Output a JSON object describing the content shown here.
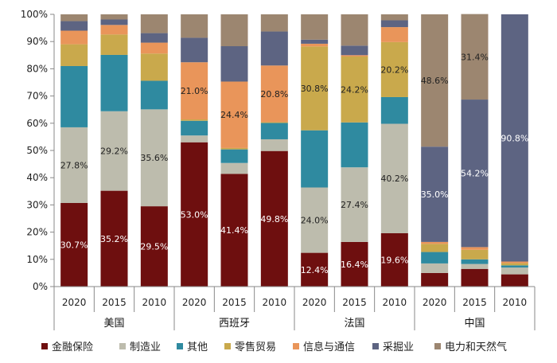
{
  "chart_data": {
    "type": "stacked-bar",
    "y_axis": {
      "min": 0,
      "max": 100,
      "step": 10,
      "unit": "%"
    },
    "groups": [
      {
        "name": "美国",
        "years": [
          "2020",
          "2015",
          "2010"
        ]
      },
      {
        "name": "西班牙",
        "years": [
          "2020",
          "2015",
          "2010"
        ]
      },
      {
        "name": "法国",
        "years": [
          "2020",
          "2015",
          "2010"
        ]
      },
      {
        "name": "中国",
        "years": [
          "2020",
          "2015",
          "2010"
        ]
      }
    ],
    "series": [
      {
        "name": "金融保险",
        "color": "#6e0f0f",
        "values": [
          30.7,
          35.2,
          29.5,
          53.0,
          41.4,
          49.8,
          12.4,
          16.4,
          19.6,
          5.0,
          6.5,
          4.5
        ]
      },
      {
        "name": "制造业",
        "color": "#bdbcad",
        "values": [
          27.8,
          29.2,
          35.6,
          2.5,
          4.0,
          4.3,
          24.0,
          27.4,
          40.2,
          3.5,
          1.8,
          2.5
        ]
      },
      {
        "name": "其他",
        "color": "#2f8aa0",
        "values": [
          22.5,
          20.7,
          10.5,
          5.4,
          5.0,
          6.0,
          21.0,
          16.5,
          9.8,
          4.2,
          1.7,
          0.8
        ]
      },
      {
        "name": "零售贸易",
        "color": "#c9a94c",
        "values": [
          8.0,
          7.5,
          10.0,
          0.5,
          0.5,
          0.3,
          30.8,
          24.2,
          20.2,
          3.0,
          3.5,
          0.8
        ]
      },
      {
        "name": "信息与通信",
        "color": "#e9955a",
        "values": [
          5.0,
          3.5,
          4.0,
          21.0,
          24.4,
          20.8,
          1.0,
          0.5,
          5.5,
          0.7,
          1.0,
          0.6
        ]
      },
      {
        "name": "采掘业",
        "color": "#5d6482",
        "values": [
          3.5,
          2.0,
          3.5,
          9.0,
          13.0,
          12.5,
          1.5,
          3.5,
          2.5,
          35.0,
          54.2,
          90.8
        ]
      },
      {
        "name": "电力和天然气",
        "color": "#9c8670",
        "values": [
          2.5,
          1.9,
          6.9,
          8.6,
          11.7,
          6.3,
          9.3,
          11.5,
          2.2,
          48.6,
          31.4,
          0.0
        ]
      }
    ],
    "data_labels": [
      {
        "series": 0,
        "bar": 0,
        "text": "30.7%",
        "color": "#ffffff"
      },
      {
        "series": 0,
        "bar": 1,
        "text": "35.2%",
        "color": "#ffffff"
      },
      {
        "series": 0,
        "bar": 2,
        "text": "29.5%",
        "color": "#ffffff"
      },
      {
        "series": 1,
        "bar": 0,
        "text": "27.8%",
        "color": "#222222"
      },
      {
        "series": 1,
        "bar": 1,
        "text": "29.2%",
        "color": "#222222"
      },
      {
        "series": 1,
        "bar": 2,
        "text": "35.6%",
        "color": "#222222"
      },
      {
        "series": 0,
        "bar": 3,
        "text": "53.0%",
        "color": "#ffffff"
      },
      {
        "series": 0,
        "bar": 4,
        "text": "41.4%",
        "color": "#ffffff"
      },
      {
        "series": 0,
        "bar": 5,
        "text": "49.8%",
        "color": "#ffffff"
      },
      {
        "series": 4,
        "bar": 3,
        "text": "21.0%",
        "color": "#222222"
      },
      {
        "series": 4,
        "bar": 4,
        "text": "24.4%",
        "color": "#222222"
      },
      {
        "series": 4,
        "bar": 5,
        "text": "20.8%",
        "color": "#222222"
      },
      {
        "series": 0,
        "bar": 6,
        "text": "12.4%",
        "color": "#ffffff"
      },
      {
        "series": 0,
        "bar": 7,
        "text": "16.4%",
        "color": "#ffffff"
      },
      {
        "series": 0,
        "bar": 8,
        "text": "19.6%",
        "color": "#ffffff"
      },
      {
        "series": 1,
        "bar": 6,
        "text": "24.0%",
        "color": "#222222"
      },
      {
        "series": 1,
        "bar": 7,
        "text": "27.4%",
        "color": "#222222"
      },
      {
        "series": 1,
        "bar": 8,
        "text": "40.2%",
        "color": "#222222"
      },
      {
        "series": 3,
        "bar": 6,
        "text": "30.8%",
        "color": "#222222"
      },
      {
        "series": 3,
        "bar": 7,
        "text": "24.2%",
        "color": "#222222"
      },
      {
        "series": 3,
        "bar": 8,
        "text": "20.2%",
        "color": "#222222"
      },
      {
        "series": 5,
        "bar": 9,
        "text": "35.0%",
        "color": "#ffffff"
      },
      {
        "series": 5,
        "bar": 10,
        "text": "54.2%",
        "color": "#ffffff"
      },
      {
        "series": 5,
        "bar": 11,
        "text": "90.8%",
        "color": "#ffffff"
      },
      {
        "series": 6,
        "bar": 9,
        "text": "48.6%",
        "color": "#222222"
      },
      {
        "series": 6,
        "bar": 10,
        "text": "31.4%",
        "color": "#222222"
      }
    ]
  }
}
